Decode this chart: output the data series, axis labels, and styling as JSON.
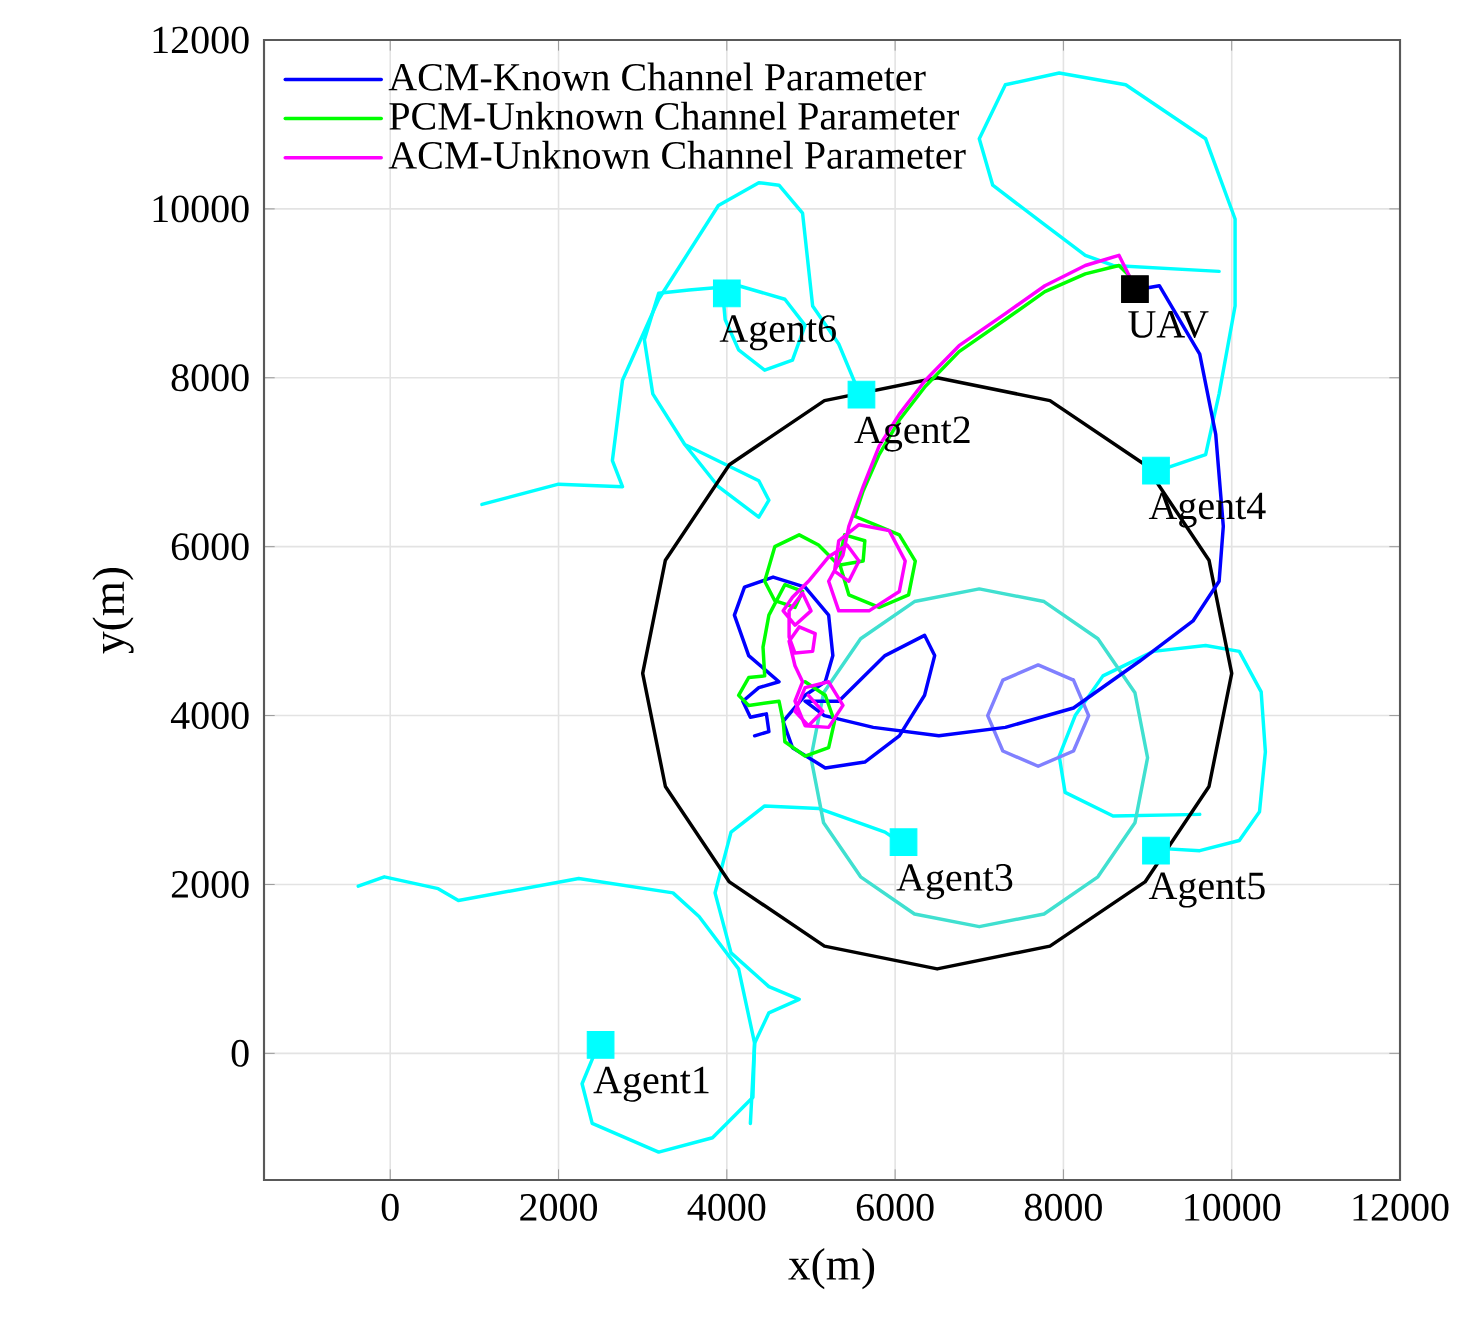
{
  "chart_data": {
    "type": "line",
    "xlabel": "x(m)",
    "ylabel": "y(m)",
    "xlim": [
      -1500,
      12000
    ],
    "ylim": [
      -1500,
      12000
    ],
    "xticks": [
      0,
      2000,
      4000,
      6000,
      8000,
      10000,
      12000
    ],
    "yticks": [
      0,
      2000,
      4000,
      6000,
      8000,
      10000,
      12000
    ],
    "grid": true,
    "legend": "top left",
    "series": [
      {
        "color": "#00ffff",
        "x": [
          2480,
          2280,
          2400,
          3190,
          3830,
          4310,
          4330,
          4140,
          3670,
          3360,
          2240,
          810,
          570,
          -70,
          -380
        ],
        "values": [
          120,
          -360,
          -830,
          -1170,
          -1000,
          -520,
          120,
          1000,
          1620,
          1900,
          2070,
          1810,
          1950,
          2090,
          1980
        ]
      },
      {
        "color": "#00ffff",
        "x": [
          6090,
          5880,
          5090,
          4450,
          4050,
          3860,
          4050,
          4500,
          4860,
          4500,
          4330,
          4280
        ],
        "values": [
          2480,
          2620,
          2900,
          2930,
          2620,
          1900,
          1190,
          790,
          640,
          480,
          120,
          -830
        ]
      },
      {
        "color": "#00ffff",
        "x": [
          3950,
          3980,
          4140,
          4450,
          4780,
          4930,
          4690,
          4140,
          3550,
          3190,
          3020,
          3120,
          3500,
          3900,
          4380,
          4500,
          4380,
          3500
        ],
        "values": [
          9020,
          8690,
          8330,
          8090,
          8210,
          8620,
          8930,
          9090,
          9040,
          9000,
          8450,
          7810,
          7210,
          6710,
          6350,
          6550,
          6780,
          7210
        ]
      },
      {
        "color": "#00ffff",
        "x": [
          5590,
          5330,
          5020,
          4900,
          4620,
          4380,
          3900,
          3190,
          2760,
          2640,
          2760,
          2000,
          1090
        ],
        "values": [
          7780,
          8400,
          8850,
          9950,
          10280,
          10310,
          10040,
          8930,
          7970,
          7020,
          6710,
          6740,
          6500
        ]
      },
      {
        "color": "#00ffff",
        "x": [
          9070,
          9690,
          9850,
          10040,
          10040,
          9690,
          8740,
          7950,
          7310,
          7000,
          7160,
          7780,
          8260,
          8590,
          9850
        ],
        "values": [
          6880,
          7090,
          7810,
          8850,
          9880,
          10830,
          11470,
          11610,
          11470,
          10830,
          10280,
          9810,
          9450,
          9330,
          9260
        ]
      },
      {
        "color": "#00ffff",
        "x": [
          9090,
          9620,
          10090,
          10330,
          10400,
          10350,
          10090,
          9690,
          9070,
          8470,
          8140,
          7950,
          8020,
          8590,
          9620
        ],
        "values": [
          2430,
          2400,
          2520,
          2860,
          3570,
          4280,
          4760,
          4830,
          4760,
          4470,
          4000,
          3520,
          3090,
          2810,
          2830
        ]
      },
      {
        "color": "#000000",
        "x": [
          10000,
          9730,
          8970,
          7840,
          6500,
          5160,
          4030,
          3270,
          3000,
          3270,
          4030,
          5160,
          6500,
          7840,
          8970,
          9730,
          10000,
          9730
        ],
        "values": [
          4500,
          5840,
          6970,
          7730,
          8000,
          7730,
          6970,
          5840,
          4500,
          3160,
          2030,
          1270,
          1000,
          1270,
          2030,
          3160,
          4500,
          5840
        ]
      },
      {
        "color": "#40e0d0",
        "x": [
          9000,
          8850,
          8410,
          7770,
          7000,
          6230,
          5590,
          5150,
          5000,
          5150,
          5590,
          6230,
          7000,
          7770,
          8410,
          8850,
          9000,
          8850
        ],
        "values": [
          3500,
          4270,
          4910,
          5350,
          5500,
          5350,
          4910,
          4270,
          3500,
          2730,
          2090,
          1650,
          1500,
          1650,
          2090,
          2730,
          3500,
          4270
        ]
      },
      {
        "color": "#8080ff",
        "x": [
          8300,
          8120,
          7700,
          7280,
          7100,
          7280,
          7700,
          8120,
          8300,
          8120
        ],
        "values": [
          4000,
          4420,
          4600,
          4420,
          4000,
          3580,
          3400,
          3580,
          4000,
          4420
        ]
      },
      {
        "name": "ACM-Known Channel Parameter",
        "color": "#0000ff",
        "x": [
          8850,
          9140,
          9620,
          9810,
          9900,
          9850,
          9540,
          8900,
          8120,
          7310,
          6520,
          5740,
          5160,
          4930,
          5330,
          5880,
          6350,
          6470,
          6350,
          6050,
          5640,
          5170,
          4780,
          4670,
          4930,
          5170,
          5260,
          5210,
          4930,
          4550,
          4210,
          4090,
          4260,
          4620,
          4380,
          4190,
          4280,
          4470,
          4500,
          4330
        ],
        "values": [
          9040,
          9090,
          8280,
          7330,
          6240,
          5590,
          5120,
          4640,
          4090,
          3860,
          3760,
          3860,
          4000,
          4170,
          4170,
          4710,
          4950,
          4710,
          4240,
          3760,
          3450,
          3380,
          3620,
          3930,
          4240,
          4400,
          4710,
          5190,
          5520,
          5640,
          5520,
          5190,
          4710,
          4400,
          4330,
          4170,
          3980,
          4020,
          3810,
          3760
        ]
      },
      {
        "name": "PCM-Unknown Channel Parameter",
        "color": "#00ff00",
        "x": [
          8780,
          8660,
          8260,
          7780,
          7310,
          6760,
          6360,
          6050,
          5810,
          5620,
          5520,
          5810,
          6050,
          6240,
          6160,
          5810,
          5450,
          5330,
          5400,
          5640,
          5620,
          5330,
          5090,
          4860,
          4570,
          4450,
          4570,
          4810,
          4900,
          4690,
          4500,
          4430,
          4450,
          4260,
          4140,
          4260,
          4620,
          4670,
          4690,
          4930,
          5210,
          5280,
          5170,
          4930
        ],
        "values": [
          9210,
          9330,
          9230,
          9020,
          8690,
          8310,
          7900,
          7500,
          7090,
          6660,
          6360,
          6240,
          6140,
          5830,
          5430,
          5280,
          5430,
          5830,
          6140,
          6070,
          5830,
          5780,
          6020,
          6140,
          6000,
          5590,
          5360,
          5280,
          5470,
          5550,
          5190,
          4810,
          4470,
          4450,
          4240,
          4120,
          4170,
          3930,
          3690,
          3520,
          3620,
          3930,
          4240,
          4400
        ]
      },
      {
        "name": "ACM-Unknown Channel Parameter",
        "color": "#ff00ff",
        "x": [
          8780,
          8660,
          8260,
          7780,
          7310,
          6760,
          6360,
          6050,
          5810,
          5620,
          5450,
          5380,
          5210,
          5330,
          5690,
          6050,
          6120,
          5930,
          5570,
          5330,
          5280,
          5450,
          5570,
          5430,
          5210,
          4970,
          4780,
          4670,
          4810,
          5000,
          4900,
          4740,
          4740,
          4810,
          5020,
          5050,
          4860,
          4740,
          4810,
          4900,
          4810,
          4930,
          5210,
          5380,
          5210,
          4930,
          4810,
          4970,
          5140,
          4970
        ],
        "values": [
          9210,
          9450,
          9330,
          9090,
          8760,
          8380,
          7970,
          7570,
          7190,
          6710,
          6240,
          5900,
          5590,
          5240,
          5240,
          5470,
          5830,
          6190,
          6260,
          6070,
          5710,
          5590,
          5830,
          6020,
          5880,
          5590,
          5400,
          5240,
          5070,
          5240,
          5450,
          5240,
          4930,
          4740,
          4760,
          4970,
          5050,
          4880,
          4590,
          4400,
          4170,
          3880,
          3860,
          4120,
          4400,
          4330,
          4050,
          3880,
          4050,
          4240
        ]
      },
      {
        "type": "scatter",
        "marker": "square",
        "color": "#00ffff",
        "x": [
          2500,
          5600,
          6100,
          9100,
          9100,
          4000
        ],
        "values": [
          100,
          7800,
          2500,
          6900,
          2400,
          9000
        ]
      },
      {
        "type": "scatter",
        "marker": "square",
        "color": "#000000",
        "x": [
          8850
        ],
        "values": [
          9050
        ]
      }
    ],
    "annotations": [
      {
        "text": "Agent1",
        "x": 2500,
        "y": 100
      },
      {
        "text": "Agent2",
        "x": 5600,
        "y": 7800
      },
      {
        "text": "Agent3",
        "x": 6100,
        "y": 2500
      },
      {
        "text": "Agent4",
        "x": 9100,
        "y": 6900
      },
      {
        "text": "Agent5",
        "x": 9100,
        "y": 2400
      },
      {
        "text": "Agent6",
        "x": 4000,
        "y": 9000
      },
      {
        "text": "UAV",
        "x": 8850,
        "y": 9050
      }
    ]
  }
}
